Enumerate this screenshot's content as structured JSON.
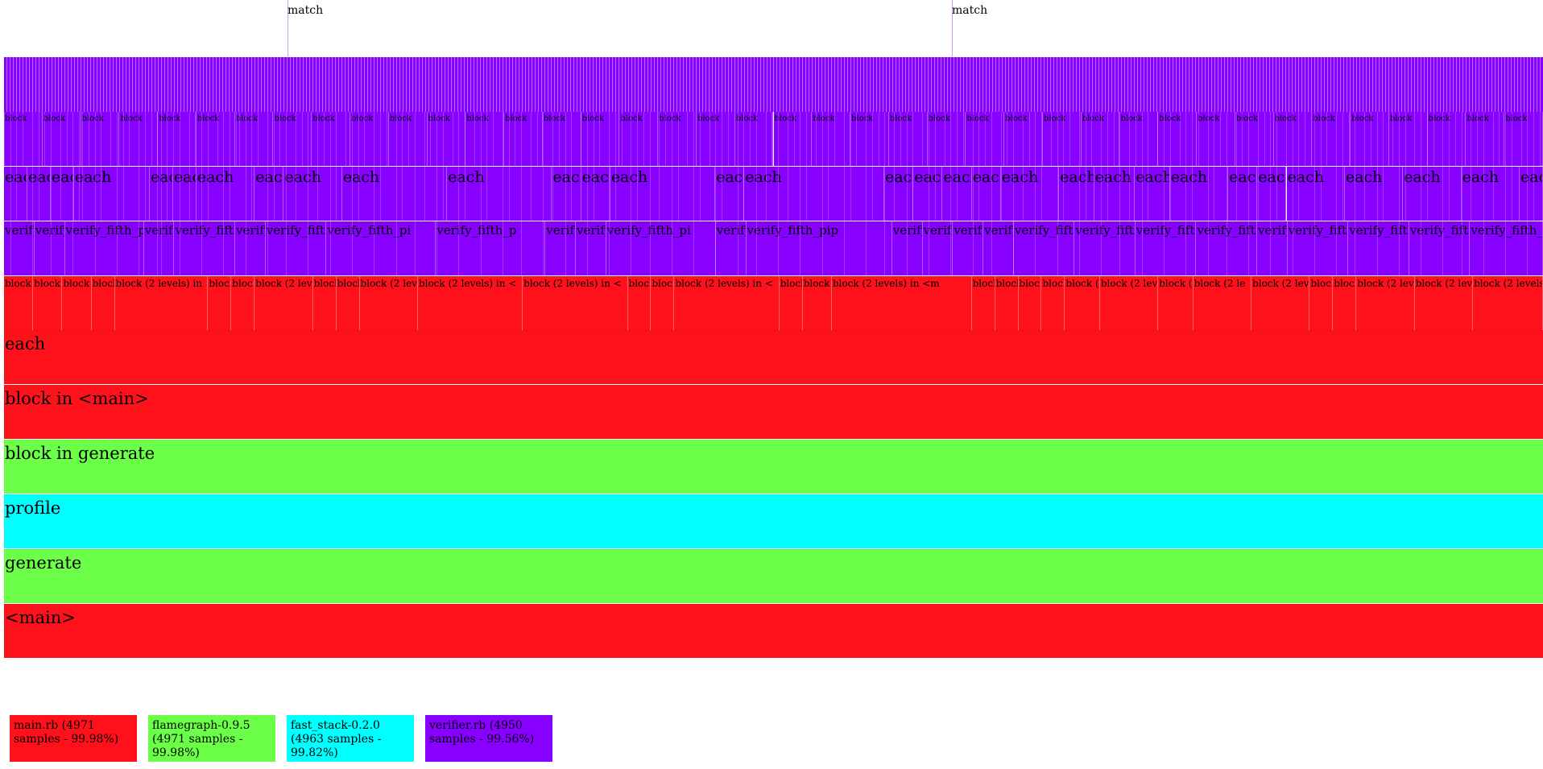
{
  "colors": {
    "main_rb": "#ff111c",
    "flamegraph": "#6bff47",
    "fast_stack": "#00ffff",
    "verifier": "#8800ff",
    "dense_stripe": "#b070ff",
    "match_line": "#cf9ff0"
  },
  "matches": [
    {
      "label": "match"
    },
    {
      "label": "match"
    }
  ],
  "rows": [
    {
      "label": "<main>",
      "gem": "main_rb"
    },
    {
      "label": "generate",
      "gem": "flamegraph"
    },
    {
      "label": "profile",
      "gem": "fast_stack"
    },
    {
      "label": "block in generate",
      "gem": "flamegraph"
    },
    {
      "label": "block in <main>",
      "gem": "main_rb"
    },
    {
      "label": "each",
      "gem": "main_rb"
    }
  ],
  "bands": [
    {
      "gem": "main_rb",
      "segments": [
        {
          "label": "block",
          "w": 0.5
        },
        {
          "label": "block",
          "w": 0.5
        },
        {
          "label": "block",
          "w": 0.5
        },
        {
          "label": "block",
          "w": 0.4
        },
        {
          "label": "block (2 levels) in",
          "w": 1.6
        },
        {
          "label": "block",
          "w": 0.4
        },
        {
          "label": "block",
          "w": 0.4
        },
        {
          "label": "block (2 lev",
          "w": 1.0
        },
        {
          "label": "block",
          "w": 0.4
        },
        {
          "label": "block",
          "w": 0.4
        },
        {
          "label": "block (2 lev",
          "w": 1.0
        },
        {
          "label": "block (2 levels) in <",
          "w": 1.8
        },
        {
          "label": "block (2 levels) in <",
          "w": 1.8
        },
        {
          "label": "block",
          "w": 0.4
        },
        {
          "label": "block",
          "w": 0.4
        },
        {
          "label": "block (2 levels) in <",
          "w": 1.8
        },
        {
          "label": "block",
          "w": 0.4
        },
        {
          "label": "block (",
          "w": 0.5
        },
        {
          "label": "block (2 levels) in <m",
          "w": 2.4
        },
        {
          "label": "block",
          "w": 0.4
        },
        {
          "label": "block",
          "w": 0.4
        },
        {
          "label": "block",
          "w": 0.4
        },
        {
          "label": "block",
          "w": 0.4
        },
        {
          "label": "block (2",
          "w": 0.6
        },
        {
          "label": "block (2 lev",
          "w": 1.0
        },
        {
          "label": "block (2",
          "w": 0.6
        },
        {
          "label": "block (2 le",
          "w": 1.0
        },
        {
          "label": "block (2 lev",
          "w": 1.0
        },
        {
          "label": "block",
          "w": 0.4
        },
        {
          "label": "block",
          "w": 0.4
        },
        {
          "label": "block (2 lev",
          "w": 1.0
        },
        {
          "label": "block (2 leve",
          "w": 1.0
        },
        {
          "label": "block (2 levels",
          "w": 1.2
        }
      ]
    },
    {
      "gem": "verifier",
      "segments": [
        {
          "label": "verify",
          "w": 0.5
        },
        {
          "label": "verify",
          "w": 0.5
        },
        {
          "label": "verify_fifth_p",
          "w": 1.3
        },
        {
          "label": "verify",
          "w": 0.5
        },
        {
          "label": "verify_fifth",
          "w": 1.0
        },
        {
          "label": "verify",
          "w": 0.5
        },
        {
          "label": "verify_fifth",
          "w": 1.0
        },
        {
          "label": "verify_fifth_pi",
          "w": 1.8
        },
        {
          "label": "verify_fifth_p",
          "w": 1.8
        },
        {
          "label": "verify",
          "w": 0.5
        },
        {
          "label": "verify",
          "w": 0.5
        },
        {
          "label": "verify_fifth_pi",
          "w": 1.8
        },
        {
          "label": "verify",
          "w": 0.5
        },
        {
          "label": "verify_fifth_pip",
          "w": 2.4
        },
        {
          "label": "verify",
          "w": 0.5
        },
        {
          "label": "verify",
          "w": 0.5
        },
        {
          "label": "verify",
          "w": 0.5
        },
        {
          "label": "verify",
          "w": 0.5
        },
        {
          "label": "verify_fifth",
          "w": 1.0
        },
        {
          "label": "verify_fifth",
          "w": 1.0
        },
        {
          "label": "verify_fifth",
          "w": 1.0
        },
        {
          "label": "verify_fifth",
          "w": 1.0
        },
        {
          "label": "verify",
          "w": 0.5
        },
        {
          "label": "verify_fifth",
          "w": 1.0
        },
        {
          "label": "verify_fifth_",
          "w": 1.0
        },
        {
          "label": "verify_fifth_",
          "w": 1.0
        },
        {
          "label": "verify_fifth_p",
          "w": 1.2
        }
      ]
    },
    {
      "gem": "verifier",
      "segments": [
        {
          "label": "each",
          "w": 0.4
        },
        {
          "label": "each",
          "w": 0.4
        },
        {
          "label": "each",
          "w": 0.4
        },
        {
          "label": "each",
          "w": 1.3
        },
        {
          "label": "each",
          "w": 0.4
        },
        {
          "label": "each",
          "w": 0.4
        },
        {
          "label": "each",
          "w": 1.0
        },
        {
          "label": "each",
          "w": 0.5
        },
        {
          "label": "each",
          "w": 1.0
        },
        {
          "label": "each",
          "w": 1.8
        },
        {
          "label": "each",
          "w": 1.8
        },
        {
          "label": "each",
          "w": 0.5
        },
        {
          "label": "each",
          "w": 0.5
        },
        {
          "label": "each",
          "w": 1.8
        },
        {
          "label": "each",
          "w": 0.5
        },
        {
          "label": "each",
          "w": 2.4
        },
        {
          "label": "each",
          "w": 0.5
        },
        {
          "label": "each",
          "w": 0.5
        },
        {
          "label": "each",
          "w": 0.5
        },
        {
          "label": "each",
          "w": 0.5
        },
        {
          "label": "each",
          "w": 1.0
        },
        {
          "label": "each",
          "w": 0.6
        },
        {
          "label": "each",
          "w": 0.7
        },
        {
          "label": "each",
          "w": 0.6
        },
        {
          "label": "each",
          "w": 1.0
        },
        {
          "label": "each",
          "w": 0.5
        },
        {
          "label": "each",
          "w": 0.5
        },
        {
          "label": "each",
          "w": 1.0
        },
        {
          "label": "each",
          "w": 1.0
        },
        {
          "label": "each",
          "w": 1.0
        },
        {
          "label": "each",
          "w": 1.0
        },
        {
          "label": "each",
          "w": 0.4
        }
      ]
    },
    {
      "gem": "verifier",
      "segments": [
        {
          "label": "block",
          "w": 0.5
        },
        {
          "label": "block",
          "w": 0.5
        },
        {
          "label": "block",
          "w": 0.5
        },
        {
          "label": "block",
          "w": 0.5
        },
        {
          "label": "block",
          "w": 0.5
        },
        {
          "label": "block",
          "w": 0.5
        },
        {
          "label": "block",
          "w": 0.5
        },
        {
          "label": "block",
          "w": 0.5
        },
        {
          "label": "block",
          "w": 0.5
        },
        {
          "label": "block",
          "w": 0.5
        },
        {
          "label": "block",
          "w": 0.5
        },
        {
          "label": "block",
          "w": 0.5
        },
        {
          "label": "block",
          "w": 0.5
        },
        {
          "label": "block",
          "w": 0.5
        },
        {
          "label": "block",
          "w": 0.5
        },
        {
          "label": "block",
          "w": 0.5
        },
        {
          "label": "block",
          "w": 0.5
        },
        {
          "label": "block",
          "w": 0.5
        },
        {
          "label": "block",
          "w": 0.5
        },
        {
          "label": "block",
          "w": 0.5
        },
        {
          "label": "block",
          "w": 0.5
        },
        {
          "label": "block",
          "w": 0.5
        },
        {
          "label": "block",
          "w": 0.5
        },
        {
          "label": "block",
          "w": 0.5
        },
        {
          "label": "block",
          "w": 0.5
        },
        {
          "label": "block",
          "w": 0.5
        },
        {
          "label": "block",
          "w": 0.5
        },
        {
          "label": "block",
          "w": 0.5
        },
        {
          "label": "block",
          "w": 0.5
        },
        {
          "label": "block",
          "w": 0.5
        },
        {
          "label": "block",
          "w": 0.5
        },
        {
          "label": "block",
          "w": 0.5
        },
        {
          "label": "block",
          "w": 0.5
        },
        {
          "label": "block",
          "w": 0.5
        },
        {
          "label": "block",
          "w": 0.5
        },
        {
          "label": "block",
          "w": 0.5
        },
        {
          "label": "block",
          "w": 0.5
        },
        {
          "label": "block",
          "w": 0.5
        },
        {
          "label": "block",
          "w": 0.5
        },
        {
          "label": "block",
          "w": 0.5
        }
      ]
    }
  ],
  "legend": [
    {
      "text": "main.rb (4971 samples - 99.98%)",
      "gem": "main_rb"
    },
    {
      "text": "flamegraph-0.9.5 (4971 samples - 99.98%)",
      "gem": "flamegraph"
    },
    {
      "text": "fast_stack-0.2.0 (4963 samples - 99.82%)",
      "gem": "fast_stack"
    },
    {
      "text": "verifier.rb (4950 samples - 99.56%)",
      "gem": "verifier"
    }
  ]
}
